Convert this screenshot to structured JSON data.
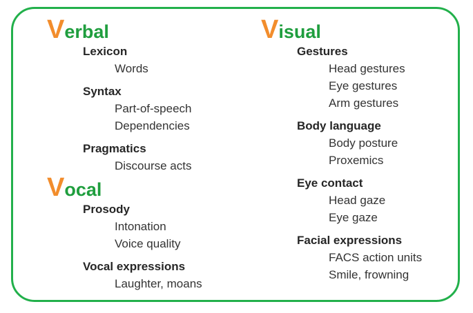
{
  "colors": {
    "border": "#22b04b",
    "heading": "#1f9e3e",
    "initial": "#f28d2c"
  },
  "columns": [
    {
      "sections": [
        {
          "initial": "V",
          "rest": "erbal",
          "groups": [
            {
              "title": "Lexicon",
              "items": [
                "Words"
              ]
            },
            {
              "title": "Syntax",
              "items": [
                "Part-of-speech",
                "Dependencies"
              ]
            },
            {
              "title": "Pragmatics",
              "items": [
                "Discourse acts"
              ]
            }
          ]
        },
        {
          "initial": "V",
          "rest": "ocal",
          "groups": [
            {
              "title": "Prosody",
              "items": [
                "Intonation",
                "Voice quality"
              ]
            },
            {
              "title": "Vocal expressions",
              "items": [
                "Laughter, moans"
              ]
            }
          ]
        }
      ]
    },
    {
      "sections": [
        {
          "initial": "V",
          "rest": "isual",
          "groups": [
            {
              "title": "Gestures",
              "items": [
                "Head gestures",
                "Eye gestures",
                "Arm gestures"
              ]
            },
            {
              "title": "Body language",
              "items": [
                "Body posture",
                "Proxemics"
              ]
            },
            {
              "title": "Eye contact",
              "items": [
                "Head gaze",
                "Eye gaze"
              ]
            },
            {
              "title": "Facial expressions",
              "items": [
                "FACS action units",
                "Smile, frowning"
              ]
            }
          ]
        }
      ]
    }
  ]
}
